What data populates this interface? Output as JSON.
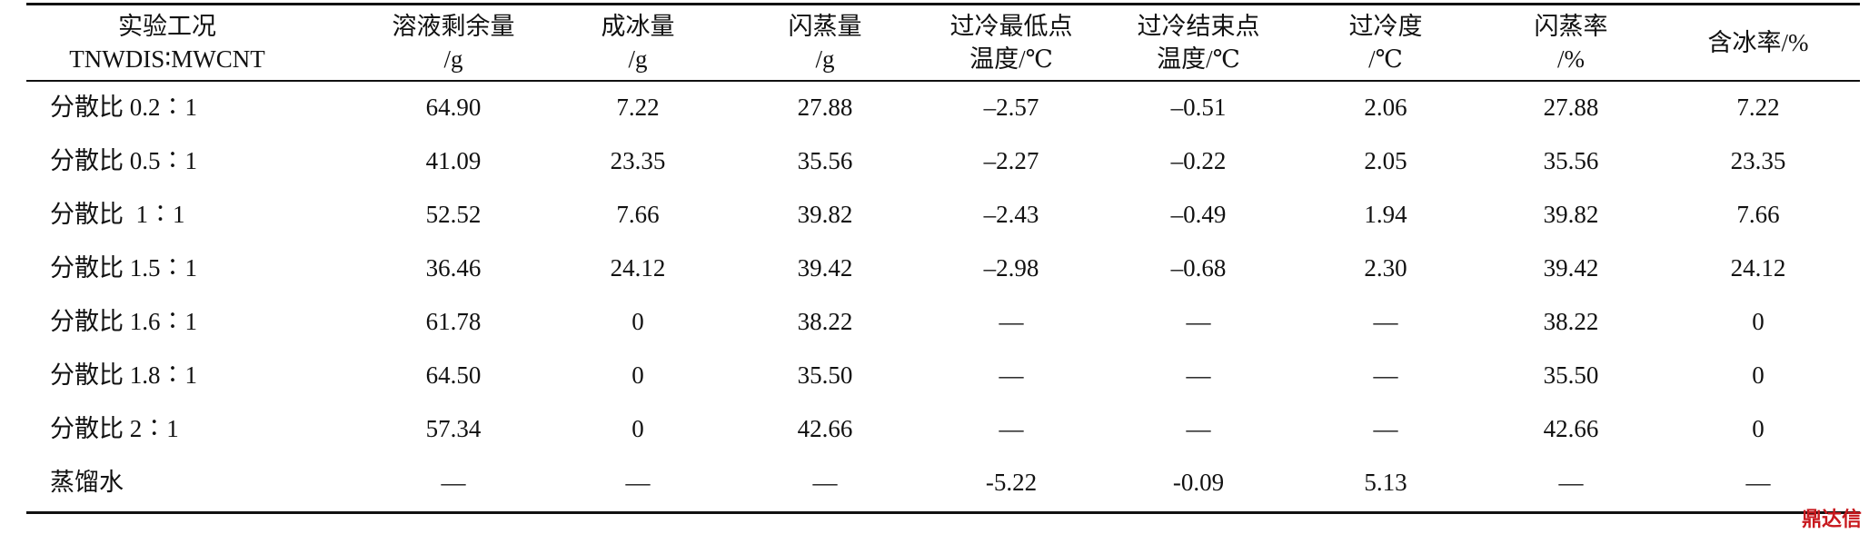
{
  "table": {
    "header": [
      [
        "实验工况",
        "TNWDIS∶MWCNT"
      ],
      [
        "溶液剩余量",
        "/g"
      ],
      [
        "成冰量",
        "/g"
      ],
      [
        "闪蒸量",
        "/g"
      ],
      [
        "过冷最低点",
        "温度/℃"
      ],
      [
        "过冷结束点",
        "温度/℃"
      ],
      [
        "过冷度",
        "/℃"
      ],
      [
        "闪蒸率",
        "/%"
      ],
      [
        "含冰率/%"
      ]
    ],
    "rows": [
      [
        "分散比 0.2∶1",
        "64.90",
        "7.22",
        "27.88",
        "–2.57",
        "–0.51",
        "2.06",
        "27.88",
        "7.22"
      ],
      [
        "分散比 0.5∶1",
        "41.09",
        "23.35",
        "35.56",
        "–2.27",
        "–0.22",
        "2.05",
        "35.56",
        "23.35"
      ],
      [
        "分散比  1∶1",
        "52.52",
        "7.66",
        "39.82",
        "–2.43",
        "–0.49",
        "1.94",
        "39.82",
        "7.66"
      ],
      [
        "分散比 1.5∶1",
        "36.46",
        "24.12",
        "39.42",
        "–2.98",
        "–0.68",
        "2.30",
        "39.42",
        "24.12"
      ],
      [
        "分散比 1.6∶1",
        "61.78",
        "0",
        "38.22",
        "—",
        "—",
        "—",
        "38.22",
        "0"
      ],
      [
        "分散比 1.8∶1",
        "64.50",
        "0",
        "35.50",
        "—",
        "—",
        "—",
        "35.50",
        "0"
      ],
      [
        "分散比 2∶1",
        "57.34",
        "0",
        "42.66",
        "—",
        "—",
        "—",
        "42.66",
        "0"
      ],
      [
        "蒸馏水",
        "—",
        "—",
        "—",
        "-5.22",
        "-0.09",
        "5.13",
        "—",
        "—"
      ]
    ]
  },
  "watermark": "鼎达信"
}
